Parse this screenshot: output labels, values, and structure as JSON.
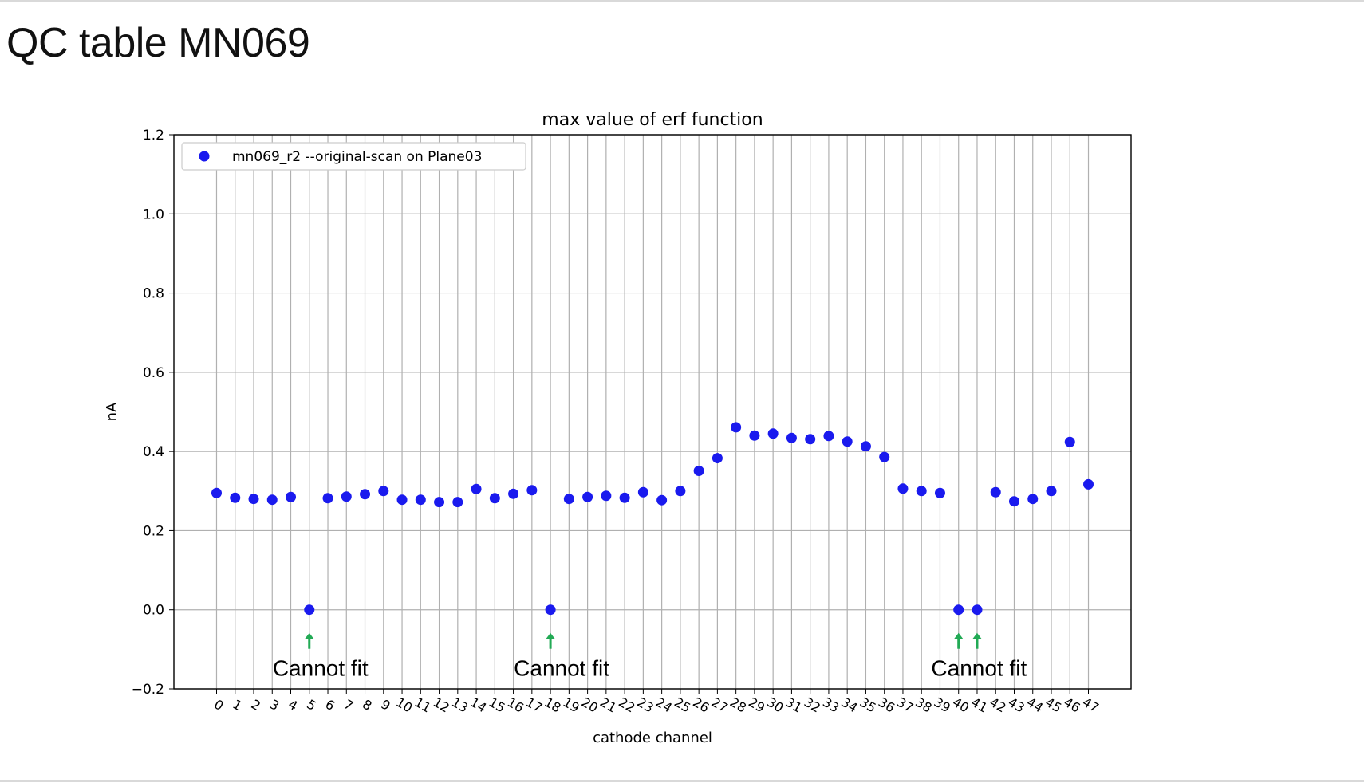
{
  "slide": {
    "title": "QC table MN069"
  },
  "colors": {
    "points": "#1a1aee",
    "arrows": "#22aa55",
    "grid": "#b0b0b0"
  },
  "chart_data": {
    "type": "scatter",
    "title": "max value of erf function",
    "xlabel": "cathode channel",
    "ylabel": "nA",
    "xlim": [
      -2.3,
      49.3
    ],
    "ylim": [
      -0.2,
      1.2
    ],
    "yticks": [
      -0.2,
      0.0,
      0.2,
      0.4,
      0.6,
      0.8,
      1.0,
      1.2
    ],
    "ytick_labels": [
      "−0.2",
      "0.0",
      "0.2",
      "0.4",
      "0.6",
      "0.8",
      "1.0",
      "1.2"
    ],
    "xticks": [
      0,
      1,
      2,
      3,
      4,
      5,
      6,
      7,
      8,
      9,
      10,
      11,
      12,
      13,
      14,
      15,
      16,
      17,
      18,
      19,
      20,
      21,
      22,
      23,
      24,
      25,
      26,
      27,
      28,
      29,
      30,
      31,
      32,
      33,
      34,
      35,
      36,
      37,
      38,
      39,
      40,
      41,
      42,
      43,
      44,
      45,
      46,
      47
    ],
    "grid": true,
    "legend_position": "top-left",
    "series": [
      {
        "name": "mn069_r2 --original-scan on Plane03",
        "x": [
          0,
          1,
          2,
          3,
          4,
          5,
          6,
          7,
          8,
          9,
          10,
          11,
          12,
          13,
          14,
          15,
          16,
          17,
          18,
          19,
          20,
          21,
          22,
          23,
          24,
          25,
          26,
          27,
          28,
          29,
          30,
          31,
          32,
          33,
          34,
          35,
          36,
          37,
          38,
          39,
          40,
          41,
          42,
          43,
          44,
          45,
          46,
          47
        ],
        "y": [
          0.295,
          0.283,
          0.28,
          0.278,
          0.285,
          0.0,
          0.282,
          0.286,
          0.292,
          0.3,
          0.278,
          0.278,
          0.272,
          0.272,
          0.305,
          0.282,
          0.293,
          0.302,
          0.0,
          0.28,
          0.285,
          0.288,
          0.283,
          0.297,
          0.277,
          0.3,
          0.351,
          0.383,
          0.461,
          0.44,
          0.445,
          0.434,
          0.431,
          0.439,
          0.425,
          0.413,
          0.386,
          0.306,
          0.3,
          0.295,
          0.0,
          0.0,
          0.297,
          0.274,
          0.28,
          0.3,
          0.424,
          0.317
        ]
      }
    ],
    "annotations": [
      {
        "text": "Cannot fit",
        "arrow_x": [
          5
        ]
      },
      {
        "text": "Cannot fit",
        "arrow_x": [
          18
        ]
      },
      {
        "text": "Cannot fit",
        "arrow_x": [
          40,
          41
        ]
      }
    ]
  }
}
